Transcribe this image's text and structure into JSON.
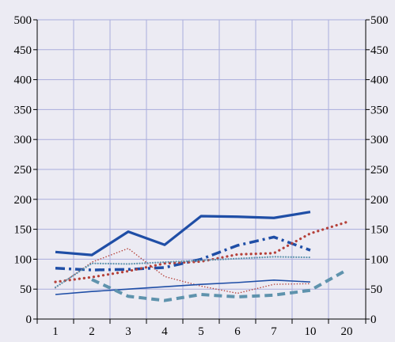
{
  "chart_data": {
    "type": "line",
    "title": "",
    "xlabel": "",
    "ylabel": "",
    "categories": [
      "1",
      "2",
      "3",
      "4",
      "5",
      "6",
      "7",
      "10",
      "20"
    ],
    "ylim": [
      0,
      500
    ],
    "yticks": [
      0,
      50,
      100,
      150,
      200,
      250,
      300,
      350,
      400,
      450,
      500
    ],
    "y2ticks": [
      0,
      50,
      100,
      150,
      200,
      250,
      300,
      350,
      400,
      450,
      500
    ],
    "grid": true,
    "legend": "none",
    "colors": {
      "background": "#ecebf3",
      "grid": "#a9addc",
      "axis": "#000000"
    },
    "series": [
      {
        "style": "solid-thick",
        "color": "#1f4ea6",
        "values": [
          112,
          107,
          146,
          124,
          172,
          171,
          169,
          179,
          null
        ]
      },
      {
        "style": "dash-dot-thick",
        "color": "#1f4ea6",
        "values": [
          85,
          82,
          83,
          86,
          100,
          123,
          137,
          115,
          null
        ]
      },
      {
        "style": "dotted-thick",
        "color": "#b5413a",
        "values": [
          62,
          70,
          80,
          93,
          96,
          108,
          110,
          143,
          162
        ]
      },
      {
        "style": "dotted-thin",
        "color": "#b5413a",
        "values": [
          52,
          95,
          118,
          71,
          55,
          43,
          58,
          59,
          null
        ]
      },
      {
        "style": "dotted-light",
        "color": "#5f93ad",
        "values": [
          53,
          93,
          92,
          95,
          98,
          101,
          104,
          103,
          null
        ]
      },
      {
        "style": "solid-thin",
        "color": "#1f4ea6",
        "values": [
          41,
          46,
          50,
          54,
          58,
          61,
          65,
          62,
          null
        ]
      },
      {
        "style": "dashed-thick",
        "color": "#5f93ad",
        "values": [
          null,
          66,
          38,
          31,
          41,
          37,
          40,
          48,
          82
        ]
      }
    ]
  }
}
